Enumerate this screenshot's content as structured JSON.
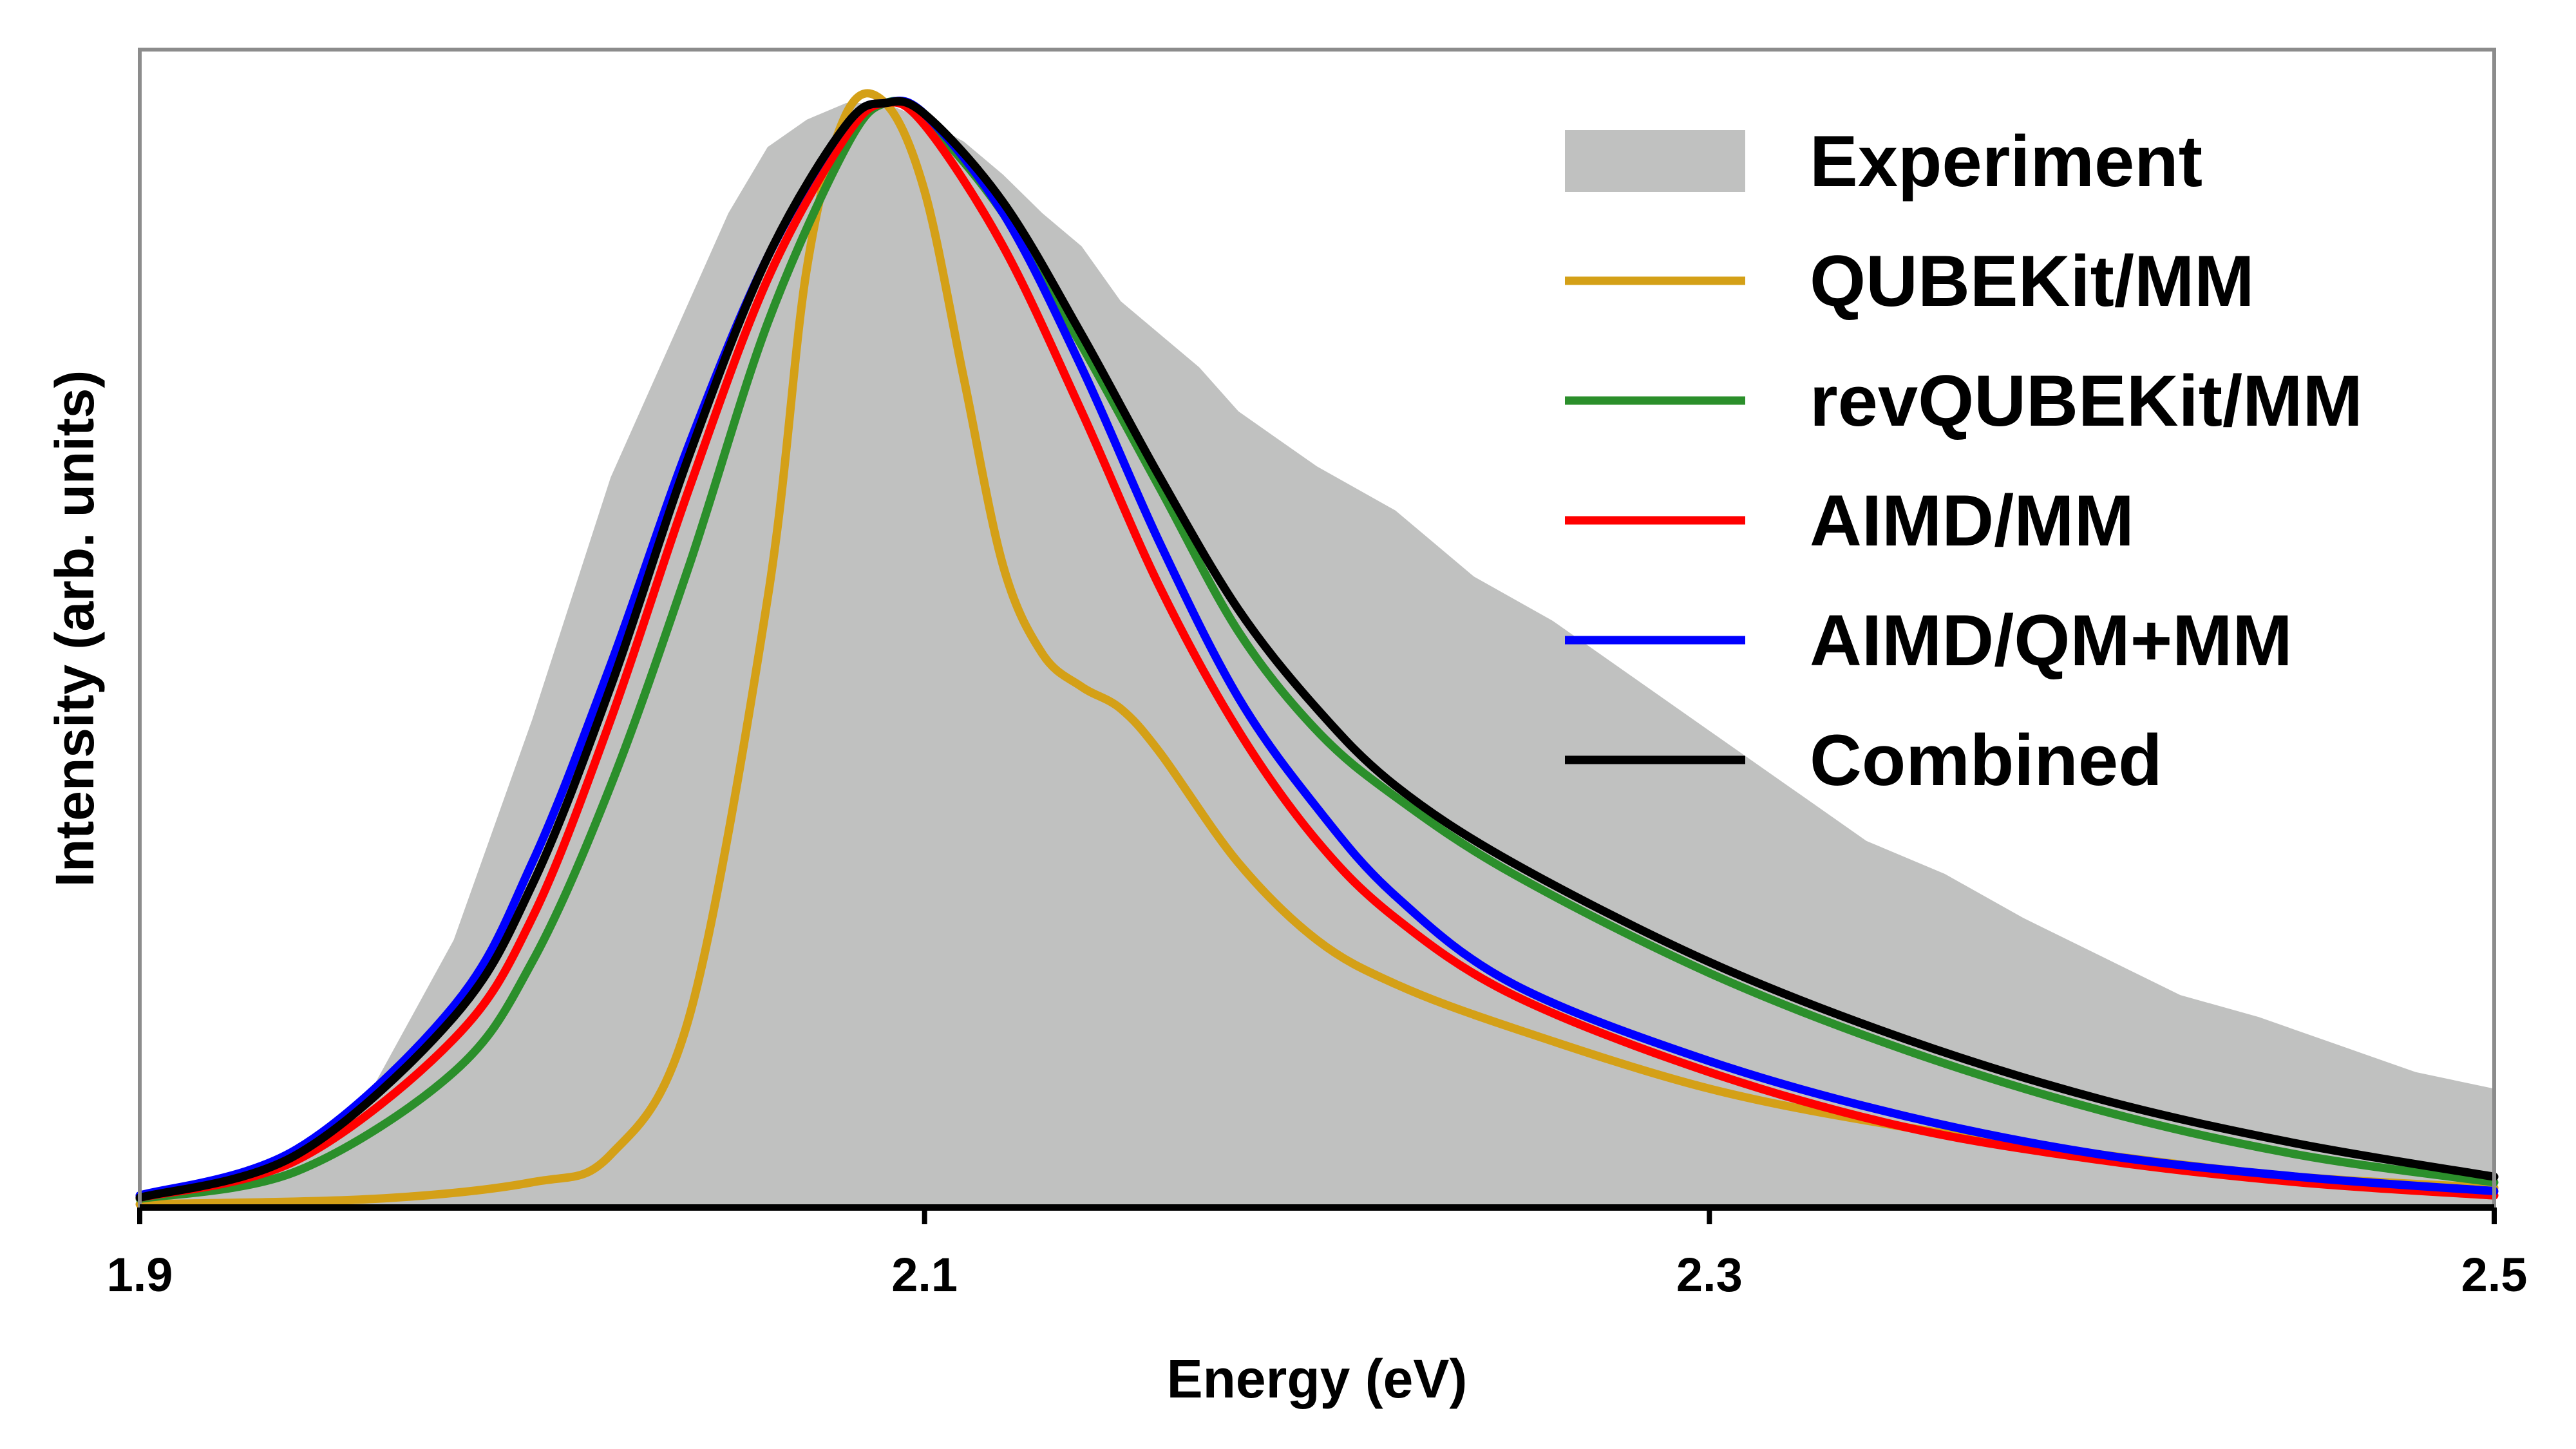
{
  "chart_data": {
    "type": "line",
    "xlabel": "Energy (eV)",
    "ylabel": "Intensity (arb. units)",
    "xlim": [
      1.9,
      2.5
    ],
    "ylim": [
      0,
      1.05
    ],
    "x_ticks": [
      "1.9",
      "2.1",
      "2.3",
      "2.5"
    ],
    "y_ticks_shown": false,
    "grid": false,
    "legend_position": "top-right",
    "series": [
      {
        "name": "Experiment",
        "style": "filled-area",
        "color": "#c0c1c0",
        "points": [
          [
            1.9,
            0.003
          ],
          [
            1.92,
            0.012
          ],
          [
            1.94,
            0.04
          ],
          [
            1.96,
            0.11
          ],
          [
            1.98,
            0.24
          ],
          [
            2.0,
            0.44
          ],
          [
            2.02,
            0.66
          ],
          [
            2.04,
            0.82
          ],
          [
            2.05,
            0.9
          ],
          [
            2.06,
            0.96
          ],
          [
            2.07,
            0.985
          ],
          [
            2.08,
            1.0
          ],
          [
            2.09,
            1.0
          ],
          [
            2.1,
            0.985
          ],
          [
            2.11,
            0.965
          ],
          [
            2.12,
            0.935
          ],
          [
            2.13,
            0.9
          ],
          [
            2.14,
            0.87
          ],
          [
            2.15,
            0.82
          ],
          [
            2.16,
            0.79
          ],
          [
            2.17,
            0.76
          ],
          [
            2.18,
            0.72
          ],
          [
            2.19,
            0.695
          ],
          [
            2.2,
            0.67
          ],
          [
            2.22,
            0.63
          ],
          [
            2.24,
            0.57
          ],
          [
            2.26,
            0.53
          ],
          [
            2.28,
            0.48
          ],
          [
            2.3,
            0.43
          ],
          [
            2.32,
            0.38
          ],
          [
            2.34,
            0.33
          ],
          [
            2.36,
            0.3
          ],
          [
            2.38,
            0.26
          ],
          [
            2.4,
            0.225
          ],
          [
            2.42,
            0.19
          ],
          [
            2.44,
            0.17
          ],
          [
            2.46,
            0.145
          ],
          [
            2.48,
            0.12
          ],
          [
            2.5,
            0.105
          ]
        ]
      },
      {
        "name": "QUBEKit/MM",
        "style": "line",
        "color": "#d4a017",
        "points": [
          [
            1.9,
            0.0
          ],
          [
            1.96,
            0.005
          ],
          [
            2.0,
            0.02
          ],
          [
            2.02,
            0.045
          ],
          [
            2.04,
            0.17
          ],
          [
            2.06,
            0.55
          ],
          [
            2.07,
            0.85
          ],
          [
            2.08,
            0.99
          ],
          [
            2.09,
            1.0
          ],
          [
            2.1,
            0.92
          ],
          [
            2.11,
            0.75
          ],
          [
            2.12,
            0.58
          ],
          [
            2.13,
            0.5
          ],
          [
            2.14,
            0.47
          ],
          [
            2.15,
            0.45
          ],
          [
            2.16,
            0.41
          ],
          [
            2.18,
            0.31
          ],
          [
            2.2,
            0.24
          ],
          [
            2.22,
            0.2
          ],
          [
            2.25,
            0.16
          ],
          [
            2.3,
            0.105
          ],
          [
            2.35,
            0.07
          ],
          [
            2.4,
            0.045
          ],
          [
            2.45,
            0.025
          ],
          [
            2.5,
            0.015
          ]
        ]
      },
      {
        "name": "revQUBEKit/MM",
        "style": "line",
        "color": "#2b8f2b",
        "points": [
          [
            1.9,
            0.005
          ],
          [
            1.94,
            0.03
          ],
          [
            1.98,
            0.12
          ],
          [
            2.0,
            0.22
          ],
          [
            2.02,
            0.38
          ],
          [
            2.04,
            0.58
          ],
          [
            2.06,
            0.8
          ],
          [
            2.08,
            0.96
          ],
          [
            2.09,
            1.0
          ],
          [
            2.1,
            0.985
          ],
          [
            2.12,
            0.9
          ],
          [
            2.14,
            0.78
          ],
          [
            2.16,
            0.65
          ],
          [
            2.18,
            0.52
          ],
          [
            2.2,
            0.43
          ],
          [
            2.22,
            0.37
          ],
          [
            2.25,
            0.3
          ],
          [
            2.3,
            0.21
          ],
          [
            2.35,
            0.14
          ],
          [
            2.4,
            0.085
          ],
          [
            2.45,
            0.045
          ],
          [
            2.5,
            0.02
          ]
        ]
      },
      {
        "name": "AIMD/MM",
        "style": "line",
        "color": "#ff0000",
        "points": [
          [
            1.9,
            0.006
          ],
          [
            1.94,
            0.04
          ],
          [
            1.98,
            0.15
          ],
          [
            2.0,
            0.26
          ],
          [
            2.02,
            0.44
          ],
          [
            2.04,
            0.65
          ],
          [
            2.06,
            0.84
          ],
          [
            2.08,
            0.97
          ],
          [
            2.09,
            1.0
          ],
          [
            2.1,
            0.98
          ],
          [
            2.12,
            0.87
          ],
          [
            2.14,
            0.72
          ],
          [
            2.16,
            0.56
          ],
          [
            2.18,
            0.43
          ],
          [
            2.2,
            0.33
          ],
          [
            2.22,
            0.26
          ],
          [
            2.25,
            0.19
          ],
          [
            2.3,
            0.12
          ],
          [
            2.35,
            0.07
          ],
          [
            2.4,
            0.04
          ],
          [
            2.45,
            0.02
          ],
          [
            2.5,
            0.008
          ]
        ]
      },
      {
        "name": "AIMD/QM+MM",
        "style": "line",
        "color": "#0000ff",
        "points": [
          [
            1.9,
            0.008
          ],
          [
            1.94,
            0.05
          ],
          [
            1.98,
            0.18
          ],
          [
            2.0,
            0.31
          ],
          [
            2.02,
            0.49
          ],
          [
            2.04,
            0.69
          ],
          [
            2.06,
            0.86
          ],
          [
            2.08,
            0.98
          ],
          [
            2.09,
            1.0
          ],
          [
            2.1,
            0.99
          ],
          [
            2.12,
            0.9
          ],
          [
            2.14,
            0.76
          ],
          [
            2.16,
            0.6
          ],
          [
            2.18,
            0.46
          ],
          [
            2.2,
            0.36
          ],
          [
            2.22,
            0.28
          ],
          [
            2.25,
            0.2
          ],
          [
            2.3,
            0.13
          ],
          [
            2.35,
            0.08
          ],
          [
            2.4,
            0.045
          ],
          [
            2.45,
            0.025
          ],
          [
            2.5,
            0.012
          ]
        ]
      },
      {
        "name": "Combined",
        "style": "line",
        "color": "#000000",
        "points": [
          [
            1.9,
            0.006
          ],
          [
            1.94,
            0.045
          ],
          [
            1.98,
            0.17
          ],
          [
            2.0,
            0.29
          ],
          [
            2.02,
            0.47
          ],
          [
            2.04,
            0.68
          ],
          [
            2.06,
            0.86
          ],
          [
            2.08,
            0.98
          ],
          [
            2.09,
            1.0
          ],
          [
            2.1,
            0.99
          ],
          [
            2.12,
            0.91
          ],
          [
            2.14,
            0.79
          ],
          [
            2.16,
            0.66
          ],
          [
            2.18,
            0.54
          ],
          [
            2.2,
            0.45
          ],
          [
            2.22,
            0.38
          ],
          [
            2.25,
            0.31
          ],
          [
            2.3,
            0.22
          ],
          [
            2.35,
            0.15
          ],
          [
            2.4,
            0.095
          ],
          [
            2.45,
            0.055
          ],
          [
            2.5,
            0.025
          ]
        ]
      }
    ]
  }
}
